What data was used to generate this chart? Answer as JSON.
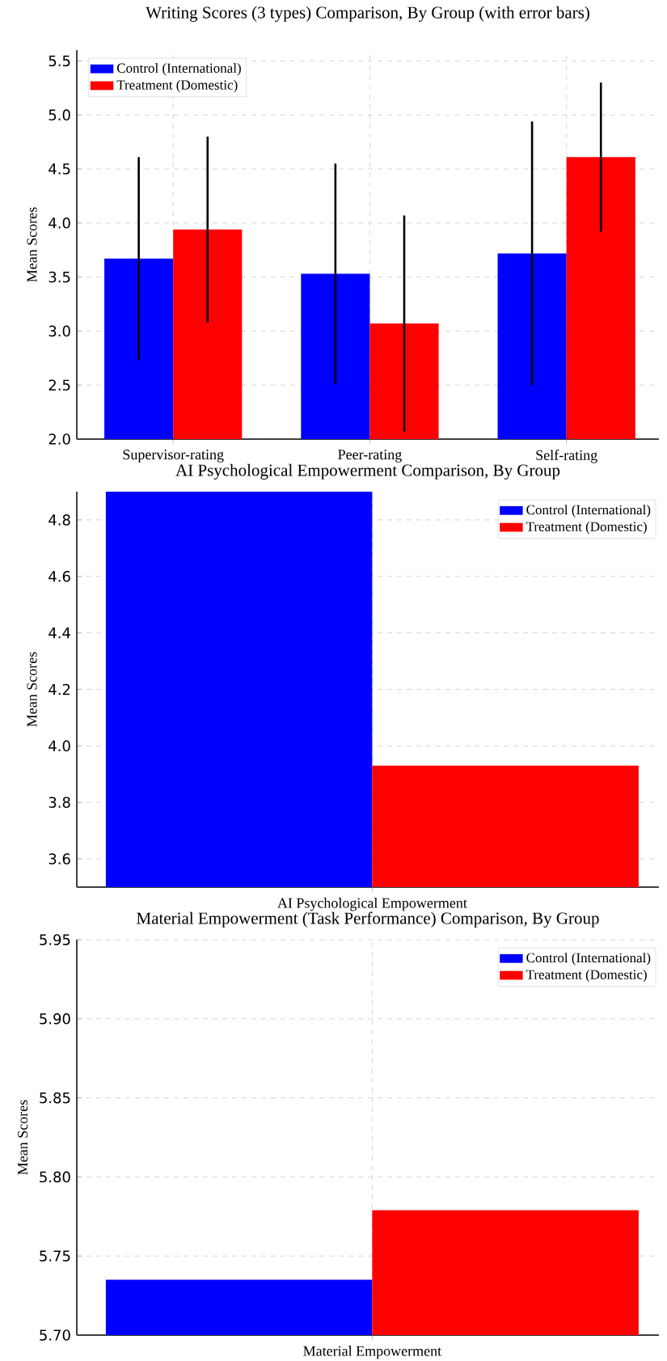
{
  "chart_data": [
    {
      "type": "bar",
      "title": "Writing Scores (3 types) Comparison, By Group (with error bars)",
      "ylabel": "Mean Scores",
      "categories": [
        "Supervisor-rating",
        "Peer-rating",
        "Self-rating"
      ],
      "series": [
        {
          "name": "Control (International)",
          "color": "#0000ff",
          "values": [
            3.67,
            3.53,
            3.72
          ],
          "errors": [
            0.94,
            1.02,
            1.22
          ]
        },
        {
          "name": "Treatment (Domestic)",
          "color": "#ff0000",
          "values": [
            3.94,
            3.07,
            4.61
          ],
          "errors": [
            0.86,
            1.0,
            0.69
          ]
        }
      ],
      "ylim": [
        2.0,
        5.6
      ],
      "yticks": [
        {
          "value": 2.0,
          "label": "2.0"
        },
        {
          "value": 2.5,
          "label": "2.5"
        },
        {
          "value": 3.0,
          "label": "3.0"
        },
        {
          "value": 3.5,
          "label": "3.5"
        },
        {
          "value": 4.0,
          "label": "4.0"
        },
        {
          "value": 4.5,
          "label": "4.5"
        },
        {
          "value": 5.0,
          "label": "5.0"
        },
        {
          "value": 5.5,
          "label": "5.5"
        }
      ],
      "grid": true,
      "legend": "top left"
    },
    {
      "type": "bar",
      "title": "AI Psychological Empowerment Comparison, By Group",
      "ylabel": "Mean Scores",
      "categories": [
        "AI Psychological Empowerment"
      ],
      "series": [
        {
          "name": "Control (International)",
          "color": "#0000ff",
          "values": [
            4.9
          ]
        },
        {
          "name": "Treatment (Domestic)",
          "color": "#ff0000",
          "values": [
            3.93
          ]
        }
      ],
      "ylim": [
        3.5,
        4.9
      ],
      "yticks": [
        {
          "value": 3.6,
          "label": "3.6"
        },
        {
          "value": 3.8,
          "label": "3.8"
        },
        {
          "value": 4.0,
          "label": "4.0"
        },
        {
          "value": 4.2,
          "label": "4.2"
        },
        {
          "value": 4.4,
          "label": "4.4"
        },
        {
          "value": 4.6,
          "label": "4.6"
        },
        {
          "value": 4.8,
          "label": "4.8"
        }
      ],
      "grid": true,
      "legend": "top right"
    },
    {
      "type": "bar",
      "title": "Material Empowerment (Task Performance) Comparison, By Group",
      "ylabel": "Mean Scores",
      "categories": [
        "Material Empowerment"
      ],
      "series": [
        {
          "name": "Control (International)",
          "color": "#0000ff",
          "values": [
            5.735
          ]
        },
        {
          "name": "Treatment (Domestic)",
          "color": "#ff0000",
          "values": [
            5.779
          ]
        }
      ],
      "ylim": [
        5.7,
        5.95
      ],
      "yticks": [
        {
          "value": 5.7,
          "label": "5.70"
        },
        {
          "value": 5.75,
          "label": "5.75"
        },
        {
          "value": 5.8,
          "label": "5.80"
        },
        {
          "value": 5.85,
          "label": "5.85"
        },
        {
          "value": 5.9,
          "label": "5.90"
        },
        {
          "value": 5.95,
          "label": "5.95"
        }
      ],
      "grid": true,
      "legend": "top right"
    }
  ]
}
